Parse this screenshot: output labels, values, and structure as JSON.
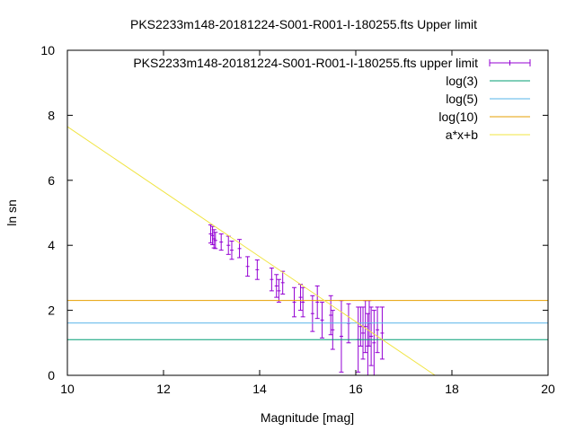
{
  "chart_data": {
    "type": "scatter",
    "title": "PKS2233m148-20181224-S001-R001-I-180255.fts Upper limit",
    "xlabel": "Magnitude [mag]",
    "ylabel": "ln sn",
    "xlim": [
      10,
      20
    ],
    "ylim": [
      0,
      10
    ],
    "xticks": [
      "10",
      "12",
      "14",
      "16",
      "18",
      "20"
    ],
    "yticks": [
      "0",
      "2",
      "4",
      "6",
      "8",
      "10"
    ],
    "grid": false,
    "legend_position": "top-right",
    "series": [
      {
        "name": "PKS2233m148-20181224-S001-R001-I-180255.fts upper limit",
        "kind": "errorbars",
        "color": "#9400d3",
        "points": [
          {
            "x": 12.98,
            "y": 4.35,
            "err": 0.28
          },
          {
            "x": 13.02,
            "y": 4.3,
            "err": 0.28
          },
          {
            "x": 13.05,
            "y": 4.2,
            "err": 0.28
          },
          {
            "x": 13.08,
            "y": 4.15,
            "err": 0.25
          },
          {
            "x": 13.2,
            "y": 4.1,
            "err": 0.25
          },
          {
            "x": 13.35,
            "y": 4.0,
            "err": 0.28
          },
          {
            "x": 13.42,
            "y": 3.85,
            "err": 0.28
          },
          {
            "x": 13.58,
            "y": 3.9,
            "err": 0.28
          },
          {
            "x": 13.75,
            "y": 3.35,
            "err": 0.3
          },
          {
            "x": 13.95,
            "y": 3.25,
            "err": 0.3
          },
          {
            "x": 14.25,
            "y": 2.95,
            "err": 0.35
          },
          {
            "x": 14.35,
            "y": 2.75,
            "err": 0.35
          },
          {
            "x": 14.4,
            "y": 2.6,
            "err": 0.35
          },
          {
            "x": 14.48,
            "y": 2.85,
            "err": 0.35
          },
          {
            "x": 14.72,
            "y": 2.25,
            "err": 0.45
          },
          {
            "x": 14.85,
            "y": 2.4,
            "err": 0.4
          },
          {
            "x": 14.9,
            "y": 2.25,
            "err": 0.45
          },
          {
            "x": 15.1,
            "y": 1.9,
            "err": 0.55
          },
          {
            "x": 15.2,
            "y": 2.25,
            "err": 0.5
          },
          {
            "x": 15.3,
            "y": 1.7,
            "err": 0.55
          },
          {
            "x": 15.48,
            "y": 1.85,
            "err": 0.6
          },
          {
            "x": 15.52,
            "y": 1.4,
            "err": 0.6
          },
          {
            "x": 15.7,
            "y": 1.2,
            "err": 1.1
          },
          {
            "x": 15.85,
            "y": 1.6,
            "err": 0.6
          },
          {
            "x": 16.05,
            "y": 1.1,
            "err": 1.0
          },
          {
            "x": 16.1,
            "y": 1.5,
            "err": 0.6
          },
          {
            "x": 16.15,
            "y": 1.3,
            "err": 0.8
          },
          {
            "x": 16.2,
            "y": 1.5,
            "err": 0.8
          },
          {
            "x": 16.25,
            "y": 0.9,
            "err": 1.0
          },
          {
            "x": 16.28,
            "y": 1.6,
            "err": 0.7
          },
          {
            "x": 16.32,
            "y": 1.2,
            "err": 0.9
          },
          {
            "x": 16.38,
            "y": 1.0,
            "err": 1.0
          },
          {
            "x": 16.45,
            "y": 1.4,
            "err": 0.7
          },
          {
            "x": 16.55,
            "y": 1.3,
            "err": 0.8
          }
        ]
      },
      {
        "name": "log(3)",
        "kind": "hline",
        "y": 1.0986,
        "color": "#009e73"
      },
      {
        "name": "log(5)",
        "kind": "hline",
        "y": 1.6094,
        "color": "#56b4e9"
      },
      {
        "name": "log(10)",
        "kind": "hline",
        "y": 2.3026,
        "color": "#e69f00"
      },
      {
        "name": "a*x+b",
        "kind": "fit",
        "a": -1.0,
        "b": 17.65,
        "color": "#f0e442"
      }
    ]
  }
}
